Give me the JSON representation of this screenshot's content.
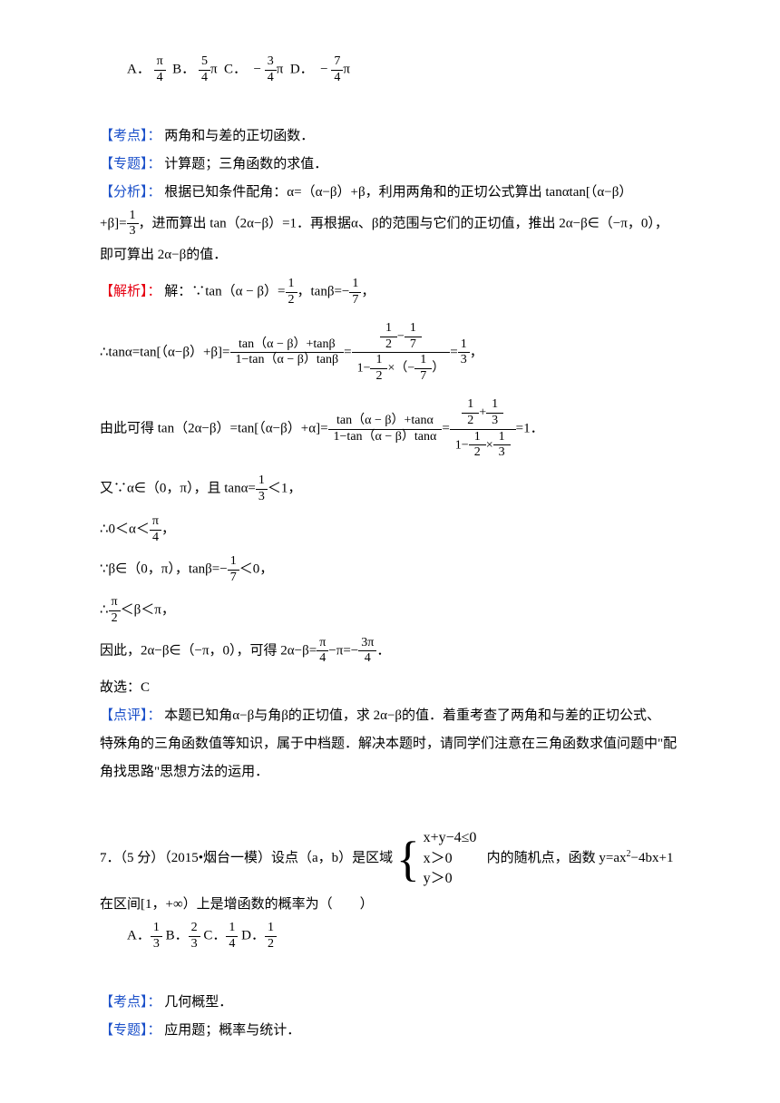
{
  "q6": {
    "option_prefix_A": "A．",
    "option_A_num": "π",
    "option_A_den": "4",
    "option_prefix_B": "B．",
    "option_B_num": "5",
    "option_B_den": "4",
    "option_B_suffix": "π",
    "option_prefix_C": "C．　−",
    "option_C_num": "3",
    "option_C_den": "4",
    "option_C_suffix": "π",
    "option_prefix_D": "D．　−",
    "option_D_num": "7",
    "option_D_den": "4",
    "option_D_suffix": "π",
    "kaodian_label": "【考点】：",
    "kaodian_text": " 两角和与差的正切函数．",
    "zhuanti_label": "【专题】：",
    "zhuanti_text": " 计算题；三角函数的求值．",
    "fenxi_label": "【分析】：",
    "fenxi_text_1": " 根据已知条件配角：α=（α−β）+β，利用两角和的正切公式算出 tanαtan[（α−β）",
    "fenxi_text_2a": "+β]=",
    "fenxi_frac_num": "1",
    "fenxi_frac_den": "3",
    "fenxi_text_2b": "，进而算出 tan（2α−β）=1．再根据α、β的范围与它们的正切值，推出 2α−β∈（−π，0），",
    "fenxi_text_3": "即可算出 2α−β的值．",
    "jiexi_label": "【解析】：",
    "jiexi_1a": " 解：∵tan（α − β）=",
    "jiexi_1_n1": "1",
    "jiexi_1_d1": "2",
    "jiexi_1b": "，tanβ=−",
    "jiexi_1_n2": "1",
    "jiexi_1_d2": "7",
    "jiexi_1c": "，",
    "jiexi_2a": "∴tanα=tan[（α−β）+β]=",
    "jiexi_2_topn": "tan（α − β）+tanβ",
    "jiexi_2_topd": "1−tan（α − β）tanβ",
    "jiexi_2eq": "=",
    "jiexi_2_rn_a_n": "1",
    "jiexi_2_rn_a_d": "2",
    "jiexi_2_rn_minus": "−",
    "jiexi_2_rn_b_n": "1",
    "jiexi_2_rn_b_d": "7",
    "jiexi_2_rd_pre": "1−",
    "jiexi_2_rd_a_n": "1",
    "jiexi_2_rd_a_d": "2",
    "jiexi_2_rd_mid": "×（−",
    "jiexi_2_rd_b_n": "1",
    "jiexi_2_rd_b_d": "7",
    "jiexi_2_rd_post": "）",
    "jiexi_2_res_n": "1",
    "jiexi_2_res_d": "3",
    "jiexi_2_end": "，",
    "jiexi_3a": "由此可得 tan（2α−β）=tan[（α−β）+α]=",
    "jiexi_3_topn": "tan（α − β）+tanα",
    "jiexi_3_topd": "1−tan（α − β）tanα",
    "jiexi_3eq": "=",
    "jiexi_3_rn_a_n": "1",
    "jiexi_3_rn_a_d": "2",
    "jiexi_3_rn_plus": "+",
    "jiexi_3_rn_b_n": "1",
    "jiexi_3_rn_b_d": "3",
    "jiexi_3_rd_pre": "1−",
    "jiexi_3_rd_a_n": "1",
    "jiexi_3_rd_a_d": "2",
    "jiexi_3_rd_mid": "×",
    "jiexi_3_rd_b_n": "1",
    "jiexi_3_rd_b_d": "3",
    "jiexi_3_res": "=1．",
    "jiexi_4a": "又∵α∈（0，π），且 tanα=",
    "jiexi_4_n": "1",
    "jiexi_4_d": "3",
    "jiexi_4b": "＜1，",
    "jiexi_5a": "∴0＜α＜",
    "jiexi_5_n": "π",
    "jiexi_5_d": "4",
    "jiexi_5b": "，",
    "jiexi_6a": "∵β∈（0，π），tanβ=−",
    "jiexi_6_n": "1",
    "jiexi_6_d": "7",
    "jiexi_6b": "＜0，",
    "jiexi_7a": "∴",
    "jiexi_7_n": "π",
    "jiexi_7_d": "2",
    "jiexi_7b": "＜β＜π，",
    "jiexi_8a": "因此，2α−β∈（−π，0），可得 2α−β=",
    "jiexi_8_n1": "π",
    "jiexi_8_d1": "4",
    "jiexi_8m": "−π=",
    "jiexi_8_n2": "3π",
    "jiexi_8_d2": "4",
    "jiexi_8pre": "−",
    "jiexi_8b": "．",
    "jiexi_9": "故选：C",
    "dianping_label": "【点评】：",
    "dianping_1": " 本题已知角α−β与角β的正切值，求 2α−β的值．着重考查了两角和与差的正切公式、",
    "dianping_2": "特殊角的三角函数值等知识，属于中档题．解决本题时，请同学们注意在三角函数求值问题中\"配",
    "dianping_3": "角找思路\"思想方法的运用．"
  },
  "q7": {
    "stem_a": "7．（5 分）（2015•烟台一模）设点（a，b）是区域",
    "sys1": "x+y−4≤0",
    "sys2": "x＞0",
    "sys3": "y＞0",
    "stem_b": "内的随机点，函数 y=ax",
    "stem_sup": "2",
    "stem_c": "−4bx+1",
    "stem_2": "在区间[1，+∞）上是增函数的概率为（　　）",
    "opt_A_pre": "A．",
    "opt_A_n": "1",
    "opt_A_d": "3",
    "opt_B_pre": " B．",
    "opt_B_n": "2",
    "opt_B_d": "3",
    "opt_C_pre": " C．",
    "opt_C_n": "1",
    "opt_C_d": "4",
    "opt_D_pre": " D．",
    "opt_D_n": "1",
    "opt_D_d": "2",
    "kaodian_label": "【考点】：",
    "kaodian_text": " 几何概型．",
    "zhuanti_label": "【专题】：",
    "zhuanti_text": " 应用题；概率与统计．"
  }
}
